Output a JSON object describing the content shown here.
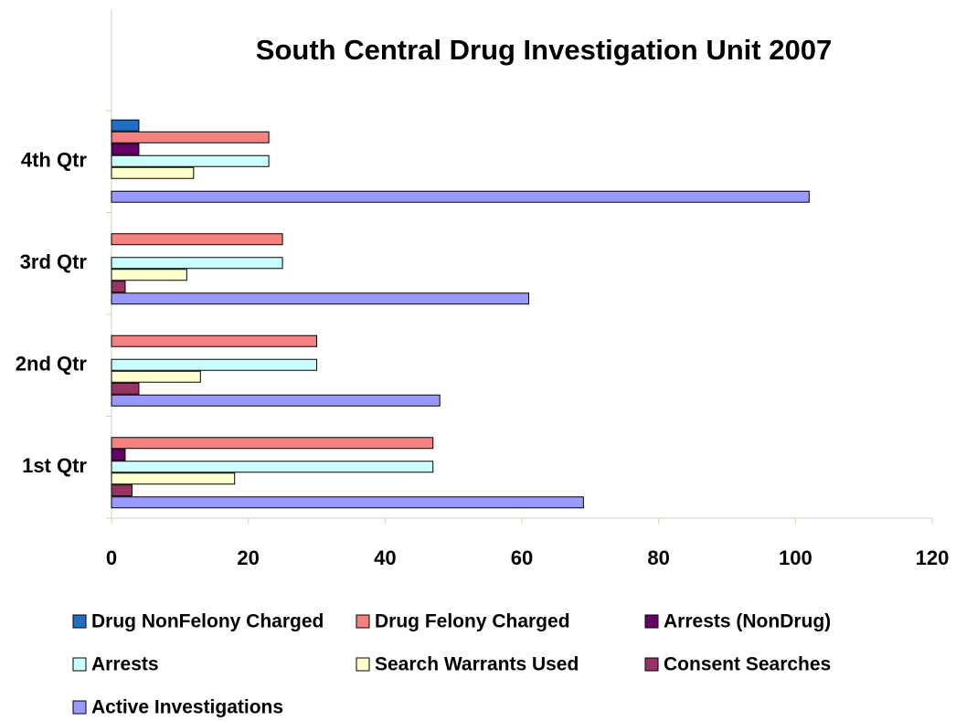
{
  "chart_data": {
    "type": "bar",
    "orientation": "horizontal",
    "title": "South Central Drug Investigation Unit 2007",
    "categories": [
      "1st Qtr",
      "2nd Qtr",
      "3rd Qtr",
      "4th Qtr"
    ],
    "series": [
      {
        "name": "Drug NonFelony Charged",
        "color": "#1f6fc5",
        "values": [
          0,
          0,
          0,
          4
        ]
      },
      {
        "name": "Drug Felony Charged",
        "color": "#f58080",
        "values": [
          47,
          30,
          25,
          23
        ]
      },
      {
        "name": "Arrests (NonDrug)",
        "color": "#660066",
        "values": [
          2,
          0,
          0,
          4
        ]
      },
      {
        "name": "Arrests",
        "color": "#ccffff",
        "values": [
          47,
          30,
          25,
          23
        ]
      },
      {
        "name": "Search Warrants Used",
        "color": "#ffffcc",
        "values": [
          18,
          13,
          11,
          12
        ]
      },
      {
        "name": "Consent Searches",
        "color": "#993366",
        "values": [
          3,
          4,
          2,
          0
        ]
      },
      {
        "name": "Active Investigations",
        "color": "#9999ff",
        "values": [
          69,
          48,
          61,
          102
        ]
      }
    ],
    "xlim": [
      0,
      120
    ],
    "xticks": [
      0,
      20,
      40,
      60,
      80,
      100,
      120
    ],
    "legend": "bottom"
  }
}
